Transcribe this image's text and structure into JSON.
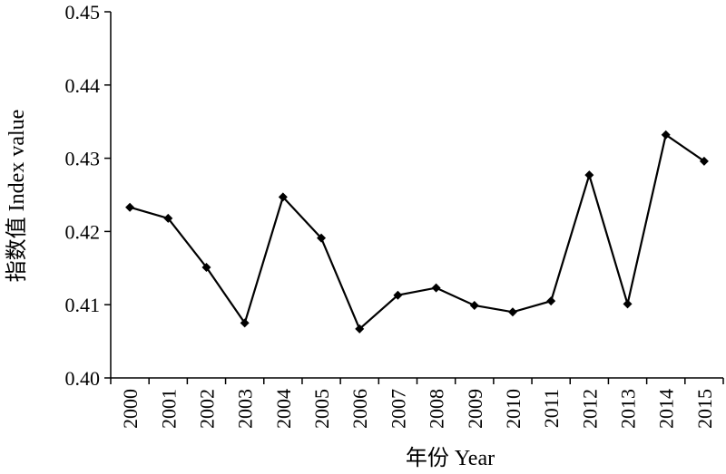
{
  "chart_data": {
    "type": "line",
    "title": "",
    "xlabel": "年份 Year",
    "ylabel": "指数值 Index value",
    "categories": [
      "2000",
      "2001",
      "2002",
      "2003",
      "2004",
      "2005",
      "2006",
      "2007",
      "2008",
      "2009",
      "2010",
      "2011",
      "2012",
      "2013",
      "2014",
      "2015"
    ],
    "series": [
      {
        "values": [
          0.4233,
          0.4218,
          0.4151,
          0.4075,
          0.4247,
          0.4191,
          0.4067,
          0.4113,
          0.4123,
          0.4099,
          0.409,
          0.4105,
          0.4277,
          0.4101,
          0.4332,
          0.4296
        ]
      }
    ],
    "ylim": [
      0.4,
      0.45
    ],
    "yticks": [
      0.4,
      0.41,
      0.42,
      0.43,
      0.44,
      0.45
    ],
    "ytick_labels": [
      "0.40",
      "0.41",
      "0.42",
      "0.43",
      "0.44",
      "0.45"
    ],
    "grid": false,
    "marker": "diamond",
    "line_color": "#000000"
  }
}
